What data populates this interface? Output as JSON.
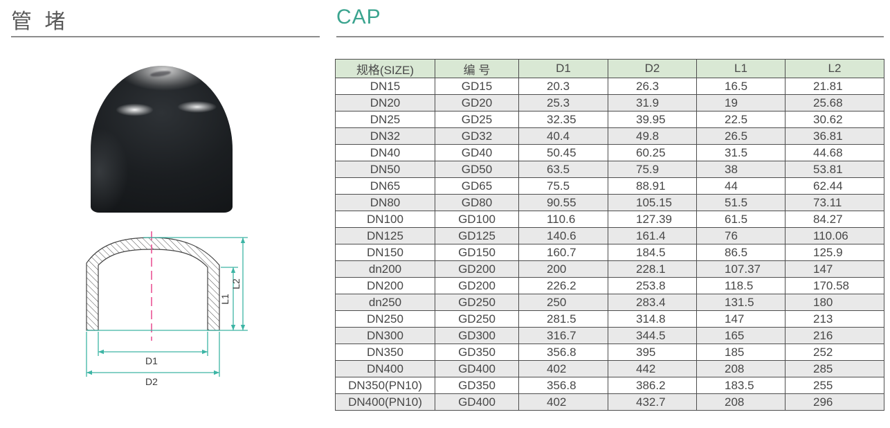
{
  "header": {
    "title_cn": "管 堵",
    "title_en": "CAP"
  },
  "colors": {
    "accent_teal": "#3ba48f",
    "dimension_line_teal": "#3db5a5",
    "centerline_pink": "#e8488d",
    "table_header_bg": "#d9e8d4",
    "table_row_alt_bg": "#e9e9e9",
    "rule_gray": "#8c8c8c"
  },
  "photo": {
    "description": "glossy black pipe cap product photo"
  },
  "diagram": {
    "d1_label": "D1",
    "d2_label": "D2",
    "l1_label": "L1",
    "l2_label": "L2"
  },
  "table": {
    "headers": [
      "规格(SIZE)",
      "编 号",
      "D1",
      "D2",
      "L1",
      "L2"
    ],
    "rows": [
      [
        "DN15",
        "GD15",
        "20.3",
        "26.3",
        "16.5",
        "21.81"
      ],
      [
        "DN20",
        "GD20",
        "25.3",
        "31.9",
        "19",
        "25.68"
      ],
      [
        "DN25",
        "GD25",
        "32.35",
        "39.95",
        "22.5",
        "30.62"
      ],
      [
        "DN32",
        "GD32",
        "40.4",
        "49.8",
        "26.5",
        "36.81"
      ],
      [
        "DN40",
        "GD40",
        "50.45",
        "60.25",
        "31.5",
        "44.68"
      ],
      [
        "DN50",
        "GD50",
        "63.5",
        "75.9",
        "38",
        "53.81"
      ],
      [
        "DN65",
        "GD65",
        "75.5",
        "88.91",
        "44",
        "62.44"
      ],
      [
        "DN80",
        "GD80",
        "90.55",
        "105.15",
        "51.5",
        "73.11"
      ],
      [
        "DN100",
        "GD100",
        "110.6",
        "127.39",
        "61.5",
        "84.27"
      ],
      [
        "DN125",
        "GD125",
        "140.6",
        "161.4",
        "76",
        "110.06"
      ],
      [
        "DN150",
        "GD150",
        "160.7",
        "184.5",
        "86.5",
        "125.9"
      ],
      [
        "dn200",
        "GD200",
        "200",
        "228.1",
        "107.37",
        "147"
      ],
      [
        "DN200",
        "GD200",
        "226.2",
        "253.8",
        "118.5",
        "170.58"
      ],
      [
        "dn250",
        "GD250",
        "250",
        "283.4",
        "131.5",
        "180"
      ],
      [
        "DN250",
        "GD250",
        "281.5",
        "314.8",
        "147",
        "213"
      ],
      [
        "DN300",
        "GD300",
        "316.7",
        "344.5",
        "165",
        "216"
      ],
      [
        "DN350",
        "GD350",
        "356.8",
        "395",
        "185",
        "252"
      ],
      [
        "DN400",
        "GD400",
        "402",
        "442",
        "208",
        "285"
      ],
      [
        "DN350(PN10)",
        "GD350",
        "356.8",
        "386.2",
        "183.5",
        "255"
      ],
      [
        "DN400(PN10)",
        "GD400",
        "402",
        "432.7",
        "208",
        "296"
      ]
    ]
  }
}
